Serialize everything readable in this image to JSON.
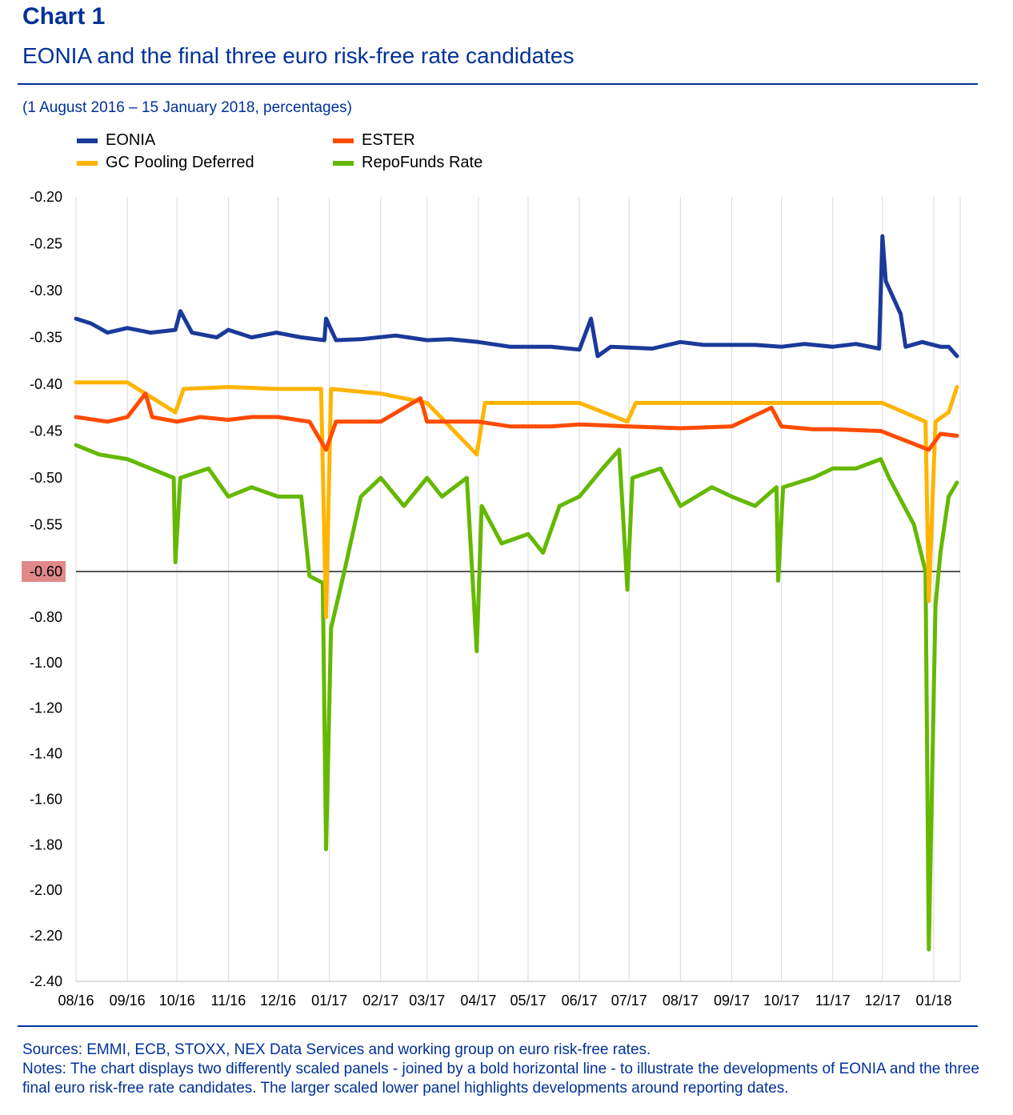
{
  "header": {
    "chart_label": "Chart 1",
    "title": "EONIA and the final three euro risk-free rate candidates",
    "subtitle": "(1 August 2016 – 15 January 2018, percentages)"
  },
  "legend": [
    {
      "name": "EONIA",
      "color": "#1a3a9a"
    },
    {
      "name": "ESTER",
      "color": "#ff4b00"
    },
    {
      "name": "GC Pooling Deferred",
      "color": "#ffb400"
    },
    {
      "name": "RepoFunds Rate",
      "color": "#65b800"
    }
  ],
  "footer": {
    "sources": "Sources: EMMI, ECB, STOXX, NEX Data Services and working group on euro risk-free rates.",
    "notes": "Notes: The chart displays two differently scaled panels - joined by a bold horizontal line - to illustrate the developments of EONIA and the three final euro risk-free rate candidates. The larger scaled lower panel highlights developments around reporting dates."
  },
  "chart_data": {
    "type": "line",
    "title": "EONIA and the final three euro risk-free rate candidates",
    "x_tick_labels": [
      "08/16",
      "09/16",
      "10/16",
      "11/16",
      "12/16",
      "01/17",
      "02/17",
      "03/17",
      "04/17",
      "05/17",
      "06/17",
      "07/17",
      "08/17",
      "09/17",
      "10/17",
      "11/17",
      "12/17",
      "01/18"
    ],
    "x_range": [
      "2016-08-01",
      "2018-01-15"
    ],
    "upper_panel": {
      "ylim": [
        -0.6,
        -0.2
      ],
      "ticks": [
        "-0.20",
        "-0.25",
        "-0.30",
        "-0.35",
        "-0.40",
        "-0.45",
        "-0.50",
        "-0.55",
        "-0.60"
      ]
    },
    "lower_panel": {
      "ylim": [
        -2.4,
        -0.6
      ],
      "ticks": [
        "-0.80",
        "-1.00",
        "-1.20",
        "-1.40",
        "-1.60",
        "-1.80",
        "-2.00",
        "-2.20",
        "-2.40"
      ]
    },
    "break_line_value": "-0.60",
    "grid": "vertical",
    "legend_position": "top",
    "series": [
      {
        "name": "EONIA",
        "color": "#1a3a9a",
        "points": [
          [
            "2016-08-01",
            -0.33
          ],
          [
            "2016-08-10",
            -0.335
          ],
          [
            "2016-08-20",
            -0.345
          ],
          [
            "2016-09-01",
            -0.34
          ],
          [
            "2016-09-15",
            -0.345
          ],
          [
            "2016-09-30",
            -0.342
          ],
          [
            "2016-10-03",
            -0.322
          ],
          [
            "2016-10-10",
            -0.345
          ],
          [
            "2016-10-25",
            -0.35
          ],
          [
            "2016-11-01",
            -0.342
          ],
          [
            "2016-11-15",
            -0.35
          ],
          [
            "2016-11-30",
            -0.345
          ],
          [
            "2016-12-15",
            -0.35
          ],
          [
            "2016-12-29",
            -0.353
          ],
          [
            "2016-12-30",
            -0.33
          ],
          [
            "2017-01-05",
            -0.353
          ],
          [
            "2017-01-20",
            -0.352
          ],
          [
            "2017-02-10",
            -0.348
          ],
          [
            "2017-03-01",
            -0.353
          ],
          [
            "2017-03-15",
            -0.352
          ],
          [
            "2017-04-01",
            -0.355
          ],
          [
            "2017-04-20",
            -0.36
          ],
          [
            "2017-05-15",
            -0.36
          ],
          [
            "2017-06-01",
            -0.363
          ],
          [
            "2017-06-08",
            -0.33
          ],
          [
            "2017-06-12",
            -0.37
          ],
          [
            "2017-06-20",
            -0.36
          ],
          [
            "2017-07-15",
            -0.362
          ],
          [
            "2017-08-01",
            -0.355
          ],
          [
            "2017-08-15",
            -0.358
          ],
          [
            "2017-09-01",
            -0.358
          ],
          [
            "2017-09-15",
            -0.358
          ],
          [
            "2017-10-01",
            -0.36
          ],
          [
            "2017-10-15",
            -0.357
          ],
          [
            "2017-11-01",
            -0.36
          ],
          [
            "2017-11-15",
            -0.357
          ],
          [
            "2017-11-29",
            -0.362
          ],
          [
            "2017-12-01",
            -0.242
          ],
          [
            "2017-12-03",
            -0.29
          ],
          [
            "2017-12-12",
            -0.325
          ],
          [
            "2017-12-15",
            -0.36
          ],
          [
            "2017-12-25",
            -0.355
          ],
          [
            "2018-01-05",
            -0.36
          ],
          [
            "2018-01-10",
            -0.36
          ],
          [
            "2018-01-15",
            -0.37
          ]
        ]
      },
      {
        "name": "ESTER",
        "color": "#ff4b00",
        "points": [
          [
            "2016-08-01",
            -0.435
          ],
          [
            "2016-08-20",
            -0.44
          ],
          [
            "2016-09-01",
            -0.435
          ],
          [
            "2016-09-12",
            -0.41
          ],
          [
            "2016-09-16",
            -0.435
          ],
          [
            "2016-10-01",
            -0.44
          ],
          [
            "2016-10-15",
            -0.435
          ],
          [
            "2016-11-01",
            -0.438
          ],
          [
            "2016-11-15",
            -0.435
          ],
          [
            "2016-12-01",
            -0.435
          ],
          [
            "2016-12-20",
            -0.44
          ],
          [
            "2016-12-30",
            -0.47
          ],
          [
            "2017-01-05",
            -0.44
          ],
          [
            "2017-02-01",
            -0.44
          ],
          [
            "2017-02-25",
            -0.415
          ],
          [
            "2017-03-01",
            -0.44
          ],
          [
            "2017-04-01",
            -0.44
          ],
          [
            "2017-04-20",
            -0.445
          ],
          [
            "2017-05-15",
            -0.445
          ],
          [
            "2017-06-01",
            -0.443
          ],
          [
            "2017-07-01",
            -0.445
          ],
          [
            "2017-08-01",
            -0.447
          ],
          [
            "2017-09-01",
            -0.445
          ],
          [
            "2017-09-25",
            -0.425
          ],
          [
            "2017-10-01",
            -0.445
          ],
          [
            "2017-10-20",
            -0.448
          ],
          [
            "2017-11-01",
            -0.448
          ],
          [
            "2017-11-30",
            -0.45
          ],
          [
            "2017-12-29",
            -0.47
          ],
          [
            "2018-01-05",
            -0.453
          ],
          [
            "2018-01-15",
            -0.455
          ]
        ]
      },
      {
        "name": "GC Pooling Deferred",
        "color": "#ffb400",
        "points": [
          [
            "2016-08-01",
            -0.398
          ],
          [
            "2016-09-01",
            -0.398
          ],
          [
            "2016-09-30",
            -0.43
          ],
          [
            "2016-10-05",
            -0.405
          ],
          [
            "2016-11-01",
            -0.403
          ],
          [
            "2016-12-01",
            -0.405
          ],
          [
            "2016-12-27",
            -0.405
          ],
          [
            "2016-12-30",
            -0.8
          ],
          [
            "2017-01-02",
            -0.405
          ],
          [
            "2017-02-01",
            -0.41
          ],
          [
            "2017-03-01",
            -0.42
          ],
          [
            "2017-03-31",
            -0.475
          ],
          [
            "2017-04-05",
            -0.42
          ],
          [
            "2017-05-01",
            -0.42
          ],
          [
            "2017-06-01",
            -0.42
          ],
          [
            "2017-06-30",
            -0.44
          ],
          [
            "2017-07-05",
            -0.42
          ],
          [
            "2017-08-01",
            -0.42
          ],
          [
            "2017-09-01",
            -0.42
          ],
          [
            "2017-10-01",
            -0.42
          ],
          [
            "2017-11-01",
            -0.42
          ],
          [
            "2017-12-01",
            -0.42
          ],
          [
            "2017-12-27",
            -0.44
          ],
          [
            "2017-12-29",
            -0.73
          ],
          [
            "2018-01-02",
            -0.44
          ],
          [
            "2018-01-10",
            -0.43
          ],
          [
            "2018-01-15",
            -0.403
          ]
        ]
      },
      {
        "name": "RepoFunds Rate",
        "color": "#65b800",
        "points": [
          [
            "2016-08-01",
            -0.465
          ],
          [
            "2016-08-15",
            -0.475
          ],
          [
            "2016-09-01",
            -0.48
          ],
          [
            "2016-09-15",
            -0.49
          ],
          [
            "2016-09-29",
            -0.5
          ],
          [
            "2016-09-30",
            -0.59
          ],
          [
            "2016-10-03",
            -0.5
          ],
          [
            "2016-10-20",
            -0.49
          ],
          [
            "2016-11-01",
            -0.52
          ],
          [
            "2016-11-15",
            -0.51
          ],
          [
            "2016-12-01",
            -0.52
          ],
          [
            "2016-12-15",
            -0.52
          ],
          [
            "2016-12-20",
            -0.62
          ],
          [
            "2016-12-28",
            -0.65
          ],
          [
            "2016-12-30",
            -1.82
          ],
          [
            "2017-01-02",
            -0.85
          ],
          [
            "2017-01-10",
            -0.6
          ],
          [
            "2017-01-20",
            -0.52
          ],
          [
            "2017-02-01",
            -0.5
          ],
          [
            "2017-02-15",
            -0.53
          ],
          [
            "2017-03-01",
            -0.5
          ],
          [
            "2017-03-10",
            -0.52
          ],
          [
            "2017-03-25",
            -0.5
          ],
          [
            "2017-03-31",
            -0.95
          ],
          [
            "2017-04-03",
            -0.53
          ],
          [
            "2017-04-15",
            -0.57
          ],
          [
            "2017-05-01",
            -0.56
          ],
          [
            "2017-05-10",
            -0.58
          ],
          [
            "2017-05-20",
            -0.53
          ],
          [
            "2017-06-01",
            -0.52
          ],
          [
            "2017-06-15",
            -0.49
          ],
          [
            "2017-06-25",
            -0.47
          ],
          [
            "2017-06-30",
            -0.68
          ],
          [
            "2017-07-03",
            -0.5
          ],
          [
            "2017-07-20",
            -0.49
          ],
          [
            "2017-08-01",
            -0.53
          ],
          [
            "2017-08-20",
            -0.51
          ],
          [
            "2017-09-01",
            -0.52
          ],
          [
            "2017-09-15",
            -0.53
          ],
          [
            "2017-09-28",
            -0.51
          ],
          [
            "2017-09-29",
            -0.64
          ],
          [
            "2017-10-02",
            -0.51
          ],
          [
            "2017-10-20",
            -0.5
          ],
          [
            "2017-11-01",
            -0.49
          ],
          [
            "2017-11-15",
            -0.49
          ],
          [
            "2017-11-30",
            -0.48
          ],
          [
            "2017-12-05",
            -0.5
          ],
          [
            "2017-12-20",
            -0.55
          ],
          [
            "2017-12-27",
            -0.6
          ],
          [
            "2017-12-29",
            -2.26
          ],
          [
            "2018-01-02",
            -0.75
          ],
          [
            "2018-01-05",
            -0.58
          ],
          [
            "2018-01-10",
            -0.52
          ],
          [
            "2018-01-15",
            -0.505
          ]
        ]
      }
    ]
  }
}
